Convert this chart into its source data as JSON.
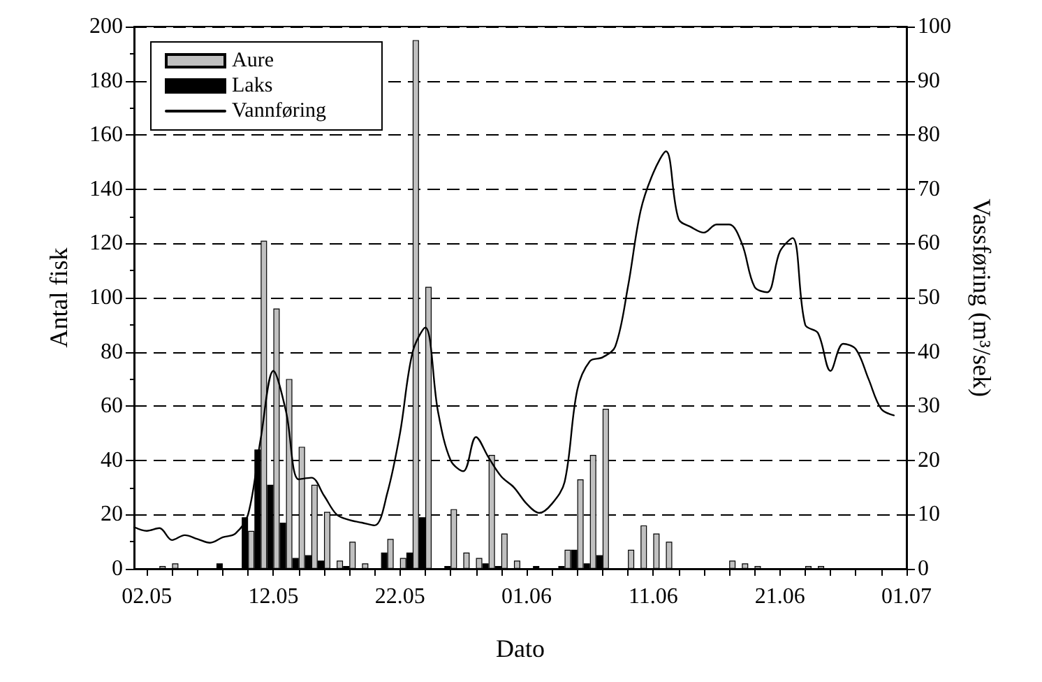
{
  "chart_data": {
    "type": "bar",
    "xlabel": "Dato",
    "ylabel": "Antal fisk",
    "y2label": "Vassføring (m³/sek)",
    "xlim": [
      "--05-01",
      "--07-01"
    ],
    "xticks": [
      {
        "value": "--05-02",
        "label": "02.05"
      },
      {
        "value": "--05-04",
        "label": null
      },
      {
        "value": "--05-06",
        "label": null
      },
      {
        "value": "--05-08",
        "label": null
      },
      {
        "value": "--05-10",
        "label": null
      },
      {
        "value": "--05-12",
        "label": "12.05"
      },
      {
        "value": "--05-14",
        "label": null
      },
      {
        "value": "--05-16",
        "label": null
      },
      {
        "value": "--05-18",
        "label": null
      },
      {
        "value": "--05-20",
        "label": null
      },
      {
        "value": "--05-22",
        "label": "22.05"
      },
      {
        "value": "--05-24",
        "label": null
      },
      {
        "value": "--05-26",
        "label": null
      },
      {
        "value": "--05-28",
        "label": null
      },
      {
        "value": "--05-30",
        "label": null
      },
      {
        "value": "--06-01",
        "label": "01.06"
      },
      {
        "value": "--06-03",
        "label": null
      },
      {
        "value": "--06-05",
        "label": null
      },
      {
        "value": "--06-07",
        "label": null
      },
      {
        "value": "--06-09",
        "label": null
      },
      {
        "value": "--06-11",
        "label": "11.06"
      },
      {
        "value": "--06-13",
        "label": null
      },
      {
        "value": "--06-15",
        "label": null
      },
      {
        "value": "--06-17",
        "label": null
      },
      {
        "value": "--06-19",
        "label": null
      },
      {
        "value": "--06-21",
        "label": "21.06"
      },
      {
        "value": "--06-23",
        "label": null
      },
      {
        "value": "--06-25",
        "label": null
      },
      {
        "value": "--06-27",
        "label": null
      },
      {
        "value": "--06-29",
        "label": null
      },
      {
        "value": "--07-01",
        "label": "01.07"
      }
    ],
    "ylim": [
      0,
      200
    ],
    "yticks": [
      0,
      20,
      40,
      60,
      80,
      100,
      120,
      140,
      160,
      180,
      200
    ],
    "y2lim": [
      0,
      100
    ],
    "y2ticks": [
      0,
      10,
      20,
      30,
      40,
      50,
      60,
      70,
      80,
      90,
      100
    ],
    "grid": "y",
    "legend": "top left",
    "series": [
      {
        "name": "Aure",
        "color": "#c0c0c0",
        "x": [
          "--05-03",
          "--05-04",
          "--05-10",
          "--05-11",
          "--05-12",
          "--05-13",
          "--05-14",
          "--05-15",
          "--05-16",
          "--05-17",
          "--05-18",
          "--05-19",
          "--05-21",
          "--05-22",
          "--05-23",
          "--05-24",
          "--05-26",
          "--05-27",
          "--05-28",
          "--05-29",
          "--05-30",
          "--05-31",
          "--06-04",
          "--06-05",
          "--06-06",
          "--06-07",
          "--06-09",
          "--06-10",
          "--06-11",
          "--06-12",
          "--06-17",
          "--06-18",
          "--06-19",
          "--06-23",
          "--06-24"
        ],
        "values": [
          1,
          2,
          14,
          121,
          96,
          70,
          45,
          31,
          21,
          3,
          10,
          2,
          11,
          4,
          195,
          104,
          22,
          6,
          4,
          42,
          13,
          3,
          7,
          33,
          42,
          59,
          7,
          16,
          13,
          10,
          3,
          2,
          1,
          1,
          1
        ]
      },
      {
        "name": "Laks",
        "color": "#000000",
        "x": [
          "--05-08",
          "--05-10",
          "--05-11",
          "--05-12",
          "--05-13",
          "--05-14",
          "--05-15",
          "--05-16",
          "--05-18",
          "--05-21",
          "--05-23",
          "--05-24",
          "--05-26",
          "--05-29",
          "--05-30",
          "--06-02",
          "--06-04",
          "--06-05",
          "--06-06",
          "--06-07"
        ],
        "values": [
          2,
          19,
          44,
          31,
          17,
          4,
          5,
          3,
          1,
          6,
          6,
          19,
          1,
          2,
          1,
          1,
          1,
          7,
          2,
          5
        ]
      },
      {
        "name": "Vannføring",
        "type": "line",
        "axis": "y2",
        "color": "#000000",
        "marker": "none",
        "line_style": "solid",
        "x": [
          "--05-01",
          "--05-02",
          "--05-03",
          "--05-04",
          "--05-05",
          "--05-06",
          "--05-07",
          "--05-08",
          "--05-09",
          "--05-10",
          "--05-11",
          "--05-12",
          "--05-13",
          "--05-14",
          "--05-15",
          "--05-16",
          "--05-17",
          "--05-18",
          "--05-19",
          "--05-20",
          "--05-21",
          "--05-22",
          "--05-23",
          "--05-24",
          "--05-25",
          "--05-26",
          "--05-27",
          "--05-28",
          "--05-29",
          "--05-30",
          "--05-31",
          "--06-01",
          "--06-02",
          "--06-03",
          "--06-04",
          "--06-05",
          "--06-06",
          "--06-07",
          "--06-08",
          "--06-09",
          "--06-10",
          "--06-11",
          "--06-12",
          "--06-13",
          "--06-14",
          "--06-15",
          "--06-16",
          "--06-17",
          "--06-18",
          "--06-19",
          "--06-20",
          "--06-21",
          "--06-22",
          "--06-23",
          "--06-24",
          "--06-25",
          "--06-26",
          "--06-27",
          "--06-28",
          "--06-29",
          "--06-30"
        ],
        "values": [
          7.7,
          7,
          7.5,
          5.3,
          6.2,
          5.5,
          4.8,
          5.8,
          6.5,
          10,
          24,
          36.5,
          29,
          16.5,
          16.8,
          13.5,
          10,
          9,
          8.5,
          8,
          14,
          25,
          40,
          44.5,
          29,
          20,
          18,
          24.3,
          20.5,
          17,
          15,
          12,
          10.3,
          12,
          16,
          33,
          38.3,
          39,
          41,
          52,
          66,
          73,
          77,
          64.5,
          63,
          62,
          63.5,
          63.5,
          60,
          52,
          51,
          58.5,
          61,
          45,
          43.5,
          36.5,
          41.5,
          40.5,
          35,
          29.5,
          28.3
        ]
      }
    ]
  }
}
